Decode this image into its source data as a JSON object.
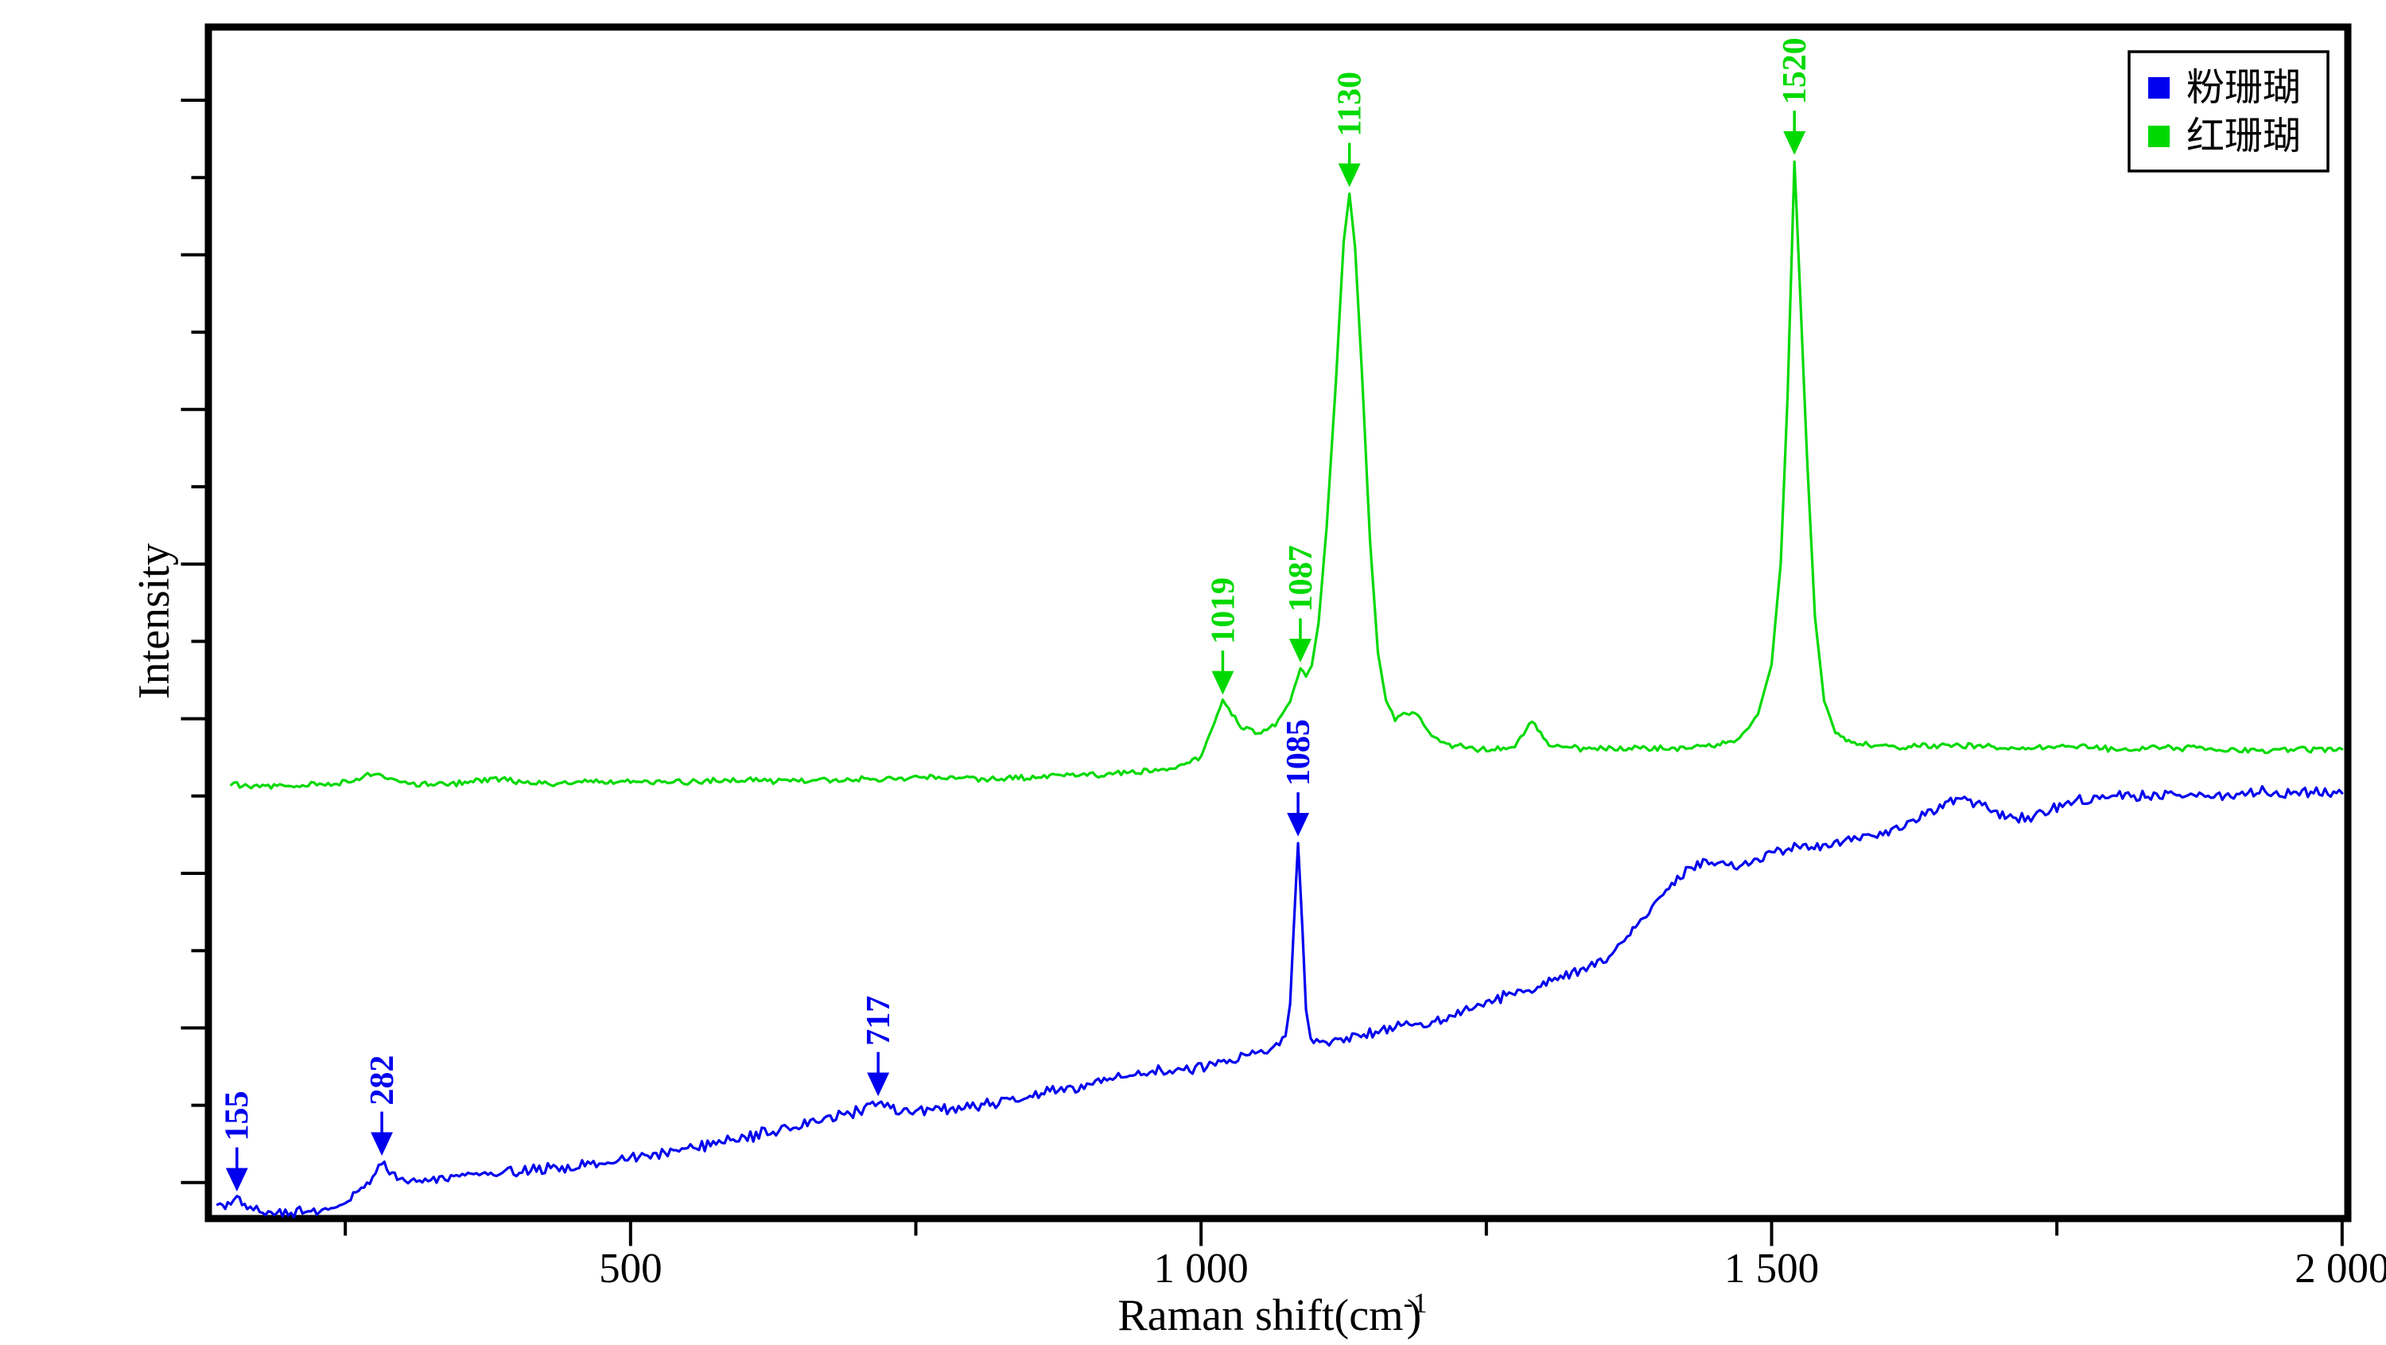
{
  "figure": {
    "y_title": "Intensity",
    "x_title_main": "Raman shift(cm",
    "x_title_sup": "-1",
    "x_title_close": ")"
  },
  "chart_data": {
    "type": "line",
    "title": "",
    "xlabel": "Raman shift (cm-1)",
    "ylabel": "Intensity",
    "x_range": [
      130,
      2005
    ],
    "y_axis": {
      "tick_labels": "none",
      "tick_count": 15
    },
    "grid": "off",
    "legend_position": "top-right",
    "x_ticks_major": [
      {
        "value": 500,
        "label": "500"
      },
      {
        "value": 1000,
        "label": "1 000"
      },
      {
        "value": 1500,
        "label": "1 500"
      },
      {
        "value": 2000,
        "label": "2 000"
      }
    ],
    "x_ticks_minor": [
      250,
      750,
      1250,
      1750
    ],
    "series": [
      {
        "name": "粉珊瑚",
        "color": "#0000ee",
        "noise_amplitude": 0.55,
        "peaks": [
          {
            "x": 155,
            "label": "155"
          },
          {
            "x": 282,
            "label": "282"
          },
          {
            "x": 717,
            "label": "717"
          },
          {
            "x": 1085,
            "label": "1085"
          }
        ],
        "points": [
          [
            138,
            0.9
          ],
          [
            147,
            1.2
          ],
          [
            155,
            1.7
          ],
          [
            164,
            0.8
          ],
          [
            175,
            0.5
          ],
          [
            190,
            0.45
          ],
          [
            205,
            0.4
          ],
          [
            220,
            0.6
          ],
          [
            235,
            0.9
          ],
          [
            250,
            1.4
          ],
          [
            264,
            2.3
          ],
          [
            274,
            3.4
          ],
          [
            282,
            4.7
          ],
          [
            291,
            3.9
          ],
          [
            300,
            3.3
          ],
          [
            315,
            3.2
          ],
          [
            335,
            3.4
          ],
          [
            360,
            3.6
          ],
          [
            390,
            3.8
          ],
          [
            420,
            4.1
          ],
          [
            450,
            4.4
          ],
          [
            480,
            4.8
          ],
          [
            510,
            5.2
          ],
          [
            540,
            5.7
          ],
          [
            570,
            6.2
          ],
          [
            600,
            6.8
          ],
          [
            630,
            7.4
          ],
          [
            660,
            8.1
          ],
          [
            690,
            8.8
          ],
          [
            705,
            9.2
          ],
          [
            717,
            9.7
          ],
          [
            728,
            9.3
          ],
          [
            742,
            9.0
          ],
          [
            760,
            9.2
          ],
          [
            785,
            9.3
          ],
          [
            815,
            9.7
          ],
          [
            845,
            10.2
          ],
          [
            875,
            10.8
          ],
          [
            905,
            11.3
          ],
          [
            935,
            11.9
          ],
          [
            965,
            12.4
          ],
          [
            995,
            12.7
          ],
          [
            1025,
            13.3
          ],
          [
            1050,
            13.9
          ],
          [
            1066,
            14.5
          ],
          [
            1074,
            15.3
          ],
          [
            1078,
            18.0
          ],
          [
            1081,
            24.0
          ],
          [
            1085,
            31.5
          ],
          [
            1089,
            24.0
          ],
          [
            1092,
            17.5
          ],
          [
            1096,
            15.2
          ],
          [
            1104,
            14.8
          ],
          [
            1115,
            14.7
          ],
          [
            1135,
            15.2
          ],
          [
            1158,
            15.8
          ],
          [
            1180,
            16.2
          ],
          [
            1205,
            16.4
          ],
          [
            1235,
            17.6
          ],
          [
            1265,
            18.6
          ],
          [
            1295,
            19.5
          ],
          [
            1325,
            20.7
          ],
          [
            1355,
            21.5
          ],
          [
            1376,
            24.0
          ],
          [
            1390,
            25.5
          ],
          [
            1405,
            27.0
          ],
          [
            1420,
            28.8
          ],
          [
            1435,
            29.7
          ],
          [
            1455,
            29.9
          ],
          [
            1472,
            29.7
          ],
          [
            1490,
            30.3
          ],
          [
            1505,
            30.7
          ],
          [
            1525,
            31.2
          ],
          [
            1550,
            31.3
          ],
          [
            1575,
            31.8
          ],
          [
            1600,
            32.4
          ],
          [
            1619,
            33.2
          ],
          [
            1650,
            34.6
          ],
          [
            1664,
            35.2
          ],
          [
            1682,
            34.8
          ],
          [
            1700,
            33.9
          ],
          [
            1714,
            33.5
          ],
          [
            1730,
            33.8
          ],
          [
            1750,
            34.5
          ],
          [
            1770,
            35.1
          ],
          [
            1800,
            35.4
          ],
          [
            1840,
            35.6
          ],
          [
            1880,
            35.5
          ],
          [
            1920,
            35.8
          ],
          [
            1950,
            35.7
          ],
          [
            1975,
            35.9
          ],
          [
            2000,
            35.7
          ]
        ]
      },
      {
        "name": "红珊瑚",
        "color": "#00d900",
        "noise_amplitude": 0.3,
        "peaks": [
          {
            "x": 1019,
            "label": "1019"
          },
          {
            "x": 1087,
            "label": "1087"
          },
          {
            "x": 1130,
            "label": "1130"
          },
          {
            "x": 1520,
            "label": "1520"
          }
        ],
        "points": [
          [
            150,
            36.4
          ],
          [
            200,
            36.3
          ],
          [
            250,
            36.6
          ],
          [
            277,
            37.3
          ],
          [
            305,
            36.4
          ],
          [
            340,
            36.5
          ],
          [
            382,
            36.9
          ],
          [
            425,
            36.5
          ],
          [
            470,
            36.7
          ],
          [
            530,
            36.6
          ],
          [
            590,
            36.8
          ],
          [
            650,
            36.7
          ],
          [
            710,
            36.9
          ],
          [
            770,
            37.0
          ],
          [
            830,
            36.9
          ],
          [
            890,
            37.2
          ],
          [
            940,
            37.4
          ],
          [
            975,
            37.8
          ],
          [
            1000,
            38.8
          ],
          [
            1019,
            43.4
          ],
          [
            1035,
            41.3
          ],
          [
            1050,
            40.7
          ],
          [
            1065,
            41.4
          ],
          [
            1078,
            43.4
          ],
          [
            1087,
            46.1
          ],
          [
            1092,
            45.5
          ],
          [
            1097,
            46.4
          ],
          [
            1103,
            50.0
          ],
          [
            1110,
            58.0
          ],
          [
            1118,
            70.0
          ],
          [
            1125,
            82.0
          ],
          [
            1130,
            86.0
          ],
          [
            1135,
            81.5
          ],
          [
            1141,
            71.0
          ],
          [
            1148,
            57.0
          ],
          [
            1155,
            47.5
          ],
          [
            1162,
            43.5
          ],
          [
            1170,
            42.0
          ],
          [
            1180,
            42.5
          ],
          [
            1190,
            42.1
          ],
          [
            1202,
            40.6
          ],
          [
            1215,
            39.8
          ],
          [
            1245,
            39.4
          ],
          [
            1275,
            39.6
          ],
          [
            1290,
            41.8
          ],
          [
            1305,
            39.7
          ],
          [
            1340,
            39.4
          ],
          [
            1380,
            39.5
          ],
          [
            1420,
            39.4
          ],
          [
            1450,
            39.7
          ],
          [
            1472,
            40.3
          ],
          [
            1488,
            42.3
          ],
          [
            1500,
            46.5
          ],
          [
            1508,
            55.0
          ],
          [
            1514,
            69.0
          ],
          [
            1518,
            82.0
          ],
          [
            1520,
            88.7
          ],
          [
            1524,
            80.0
          ],
          [
            1531,
            64.0
          ],
          [
            1538,
            50.5
          ],
          [
            1546,
            43.5
          ],
          [
            1556,
            40.8
          ],
          [
            1570,
            39.9
          ],
          [
            1610,
            39.6
          ],
          [
            1660,
            39.7
          ],
          [
            1710,
            39.5
          ],
          [
            1760,
            39.6
          ],
          [
            1810,
            39.4
          ],
          [
            1860,
            39.5
          ],
          [
            1910,
            39.3
          ],
          [
            1960,
            39.4
          ],
          [
            2000,
            39.4
          ]
        ]
      }
    ]
  }
}
